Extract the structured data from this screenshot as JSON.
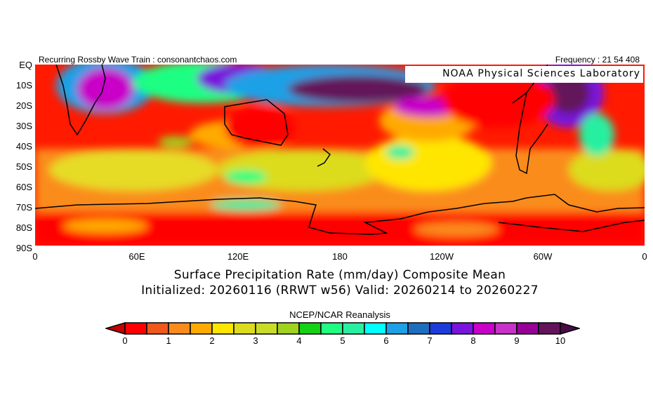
{
  "header": {
    "left": "Recurring Rossby Wave Train : consonantchaos.com",
    "right": "Frequency : 21 54 408",
    "credit": "NOAA Physical Sciences Laboratory"
  },
  "map": {
    "lat_labels": [
      "EQ",
      "10S",
      "20S",
      "30S",
      "40S",
      "50S",
      "60S",
      "70S",
      "80S",
      "90S"
    ],
    "lon_labels": [
      "0",
      "60E",
      "120E",
      "180",
      "120W",
      "60W",
      "0"
    ]
  },
  "title": {
    "line1": "Surface Precipitation Rate (mm/day) Composite Mean",
    "line2": "Initialized: 20260116 (RRWT w56) Valid: 20260214 to 20260227"
  },
  "colorbar": {
    "source": "NCEP/NCAR Reanalysis",
    "labels": [
      "0",
      "1",
      "2",
      "3",
      "4",
      "5",
      "6",
      "7",
      "8",
      "9",
      "10"
    ],
    "under_color": "#c40000",
    "over_color": "#4a0a4a",
    "colors": [
      "#ff0000",
      "#f0581c",
      "#fa8c1e",
      "#ffaa00",
      "#ffe600",
      "#dcdc1e",
      "#c8dc28",
      "#a0d21e",
      "#14d214",
      "#1eff82",
      "#28f0a0",
      "#00ffff",
      "#1ea0e6",
      "#1e6ebe",
      "#1e3cdc",
      "#7814dc",
      "#c800c8",
      "#c832c8",
      "#960096",
      "#64145a"
    ]
  }
}
